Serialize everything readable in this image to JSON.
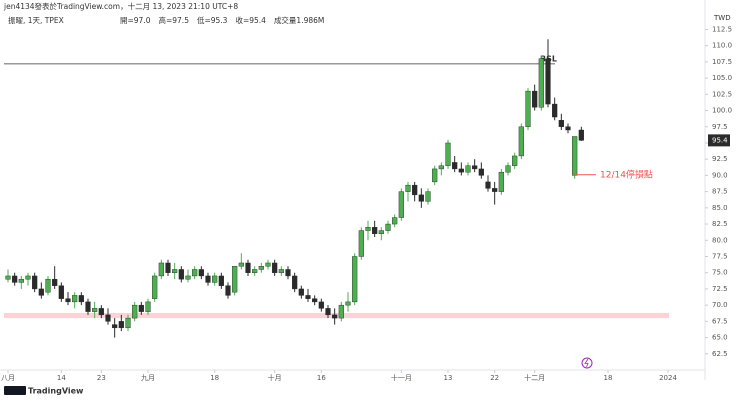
{
  "header": {
    "author_line": "jen4134發表於TradingView.com，十二月 13, 2023 21:10 UTC+8",
    "symbol": "振曜, 1天, TPEX",
    "ohlc": [
      "開=97.0",
      "高=97.5",
      "低=95.3",
      "收=95.4",
      "成交量1.986M"
    ]
  },
  "chart_data": {
    "type": "candlestick",
    "currency": "TWD",
    "up_color": "#4caf50",
    "down_color": "#2b2b2b",
    "open": [
      74,
      74.5,
      73.5,
      74,
      74.5,
      72.5,
      72,
      74,
      73,
      71,
      70.5,
      71.5,
      70.5,
      69,
      69.5,
      68.5,
      67,
      67.5,
      66.5,
      68,
      70,
      69,
      71,
      74.5,
      76.5,
      75,
      75.5,
      74,
      74.5,
      75.5,
      74.5,
      73.5,
      74.5,
      73,
      72,
      76,
      76.5,
      75,
      75.5,
      76,
      76.5,
      75,
      75.5,
      74.5,
      72.5,
      71.5,
      71,
      70.5,
      69.5,
      68.5,
      68,
      70,
      70.5,
      77.5,
      81.5,
      82,
      81,
      81.5,
      82.5,
      83.5,
      87.5,
      88.5,
      87,
      86,
      89,
      91,
      91.5,
      92,
      91,
      90.5,
      91.5,
      91,
      89,
      88,
      87.5,
      90.5,
      91.5,
      93,
      97.5,
      103,
      100.5,
      108,
      101,
      98.5,
      97.5,
      90,
      97
    ],
    "high": [
      75.5,
      75,
      74.5,
      75,
      75,
      73.5,
      74.5,
      76,
      73.5,
      72,
      72,
      72,
      71,
      70.5,
      70,
      69.5,
      68,
      68.5,
      68.5,
      70.5,
      70.5,
      71,
      75,
      77,
      77,
      76.5,
      76,
      75.5,
      76,
      76,
      75,
      75,
      75,
      73.5,
      76,
      78,
      77,
      76,
      76.5,
      77,
      77,
      76,
      76,
      75,
      73,
      72.5,
      71.5,
      71,
      70,
      69.5,
      70.5,
      72,
      78,
      82,
      83,
      83,
      82,
      83,
      84,
      88,
      89,
      89,
      88,
      88,
      91.5,
      92,
      95.5,
      93,
      92,
      92,
      92.5,
      92,
      90,
      89,
      91,
      92,
      93.5,
      98,
      103.5,
      104,
      108.5,
      111,
      102,
      99.5,
      98,
      96,
      97.5
    ],
    "low": [
      73.5,
      73,
      72.5,
      73,
      72,
      71,
      71.5,
      72.5,
      70.5,
      70,
      69.5,
      70,
      68.5,
      68,
      68,
      67,
      65,
      66,
      66,
      67.5,
      68.5,
      68.5,
      70.5,
      74,
      74.5,
      74,
      73.5,
      73.5,
      74,
      74,
      73,
      73,
      72.5,
      71,
      71.5,
      75.5,
      74.5,
      74.5,
      75,
      75.5,
      74.5,
      74.5,
      74,
      72,
      71,
      70.5,
      70,
      69,
      68,
      67,
      67.5,
      69,
      70,
      77,
      80,
      80.5,
      80,
      81,
      82,
      83,
      86,
      86,
      85,
      85.5,
      88.5,
      90,
      91,
      90.5,
      90,
      90,
      90.5,
      89.5,
      87.5,
      85.5,
      87,
      90,
      91,
      92.5,
      97,
      100,
      100,
      100.5,
      98.5,
      97,
      96.5,
      89.5,
      95.3
    ],
    "close": [
      74.5,
      73.5,
      74,
      74.5,
      72.5,
      71.5,
      74,
      73,
      71,
      70.5,
      71.5,
      70.5,
      69,
      69.5,
      68.5,
      67.5,
      66.5,
      66.5,
      68,
      70,
      69,
      70.5,
      74.5,
      76.5,
      75,
      75.5,
      74,
      74.5,
      75.5,
      74.5,
      73.5,
      74.5,
      73,
      71.5,
      76,
      76.5,
      75,
      75.5,
      76,
      76.5,
      75,
      75.5,
      74.5,
      72.5,
      71.5,
      71,
      70.5,
      69.5,
      68.5,
      68,
      70,
      70.5,
      77.5,
      81.5,
      82,
      81,
      81.5,
      82.5,
      83.5,
      87.5,
      88.5,
      87,
      86,
      87.5,
      91,
      91.5,
      95,
      91,
      90.5,
      91.5,
      91,
      90,
      88,
      87.5,
      90.5,
      91.5,
      93,
      97.5,
      103,
      100.5,
      108,
      101,
      99,
      97.5,
      97,
      96,
      95.4
    ],
    "xlim": [
      -0.6,
      104.4
    ],
    "xticks": [
      {
        "value": 0,
        "label": "八月"
      },
      {
        "value": 8,
        "label": "14"
      },
      {
        "value": 14,
        "label": "23"
      },
      {
        "value": 21,
        "label": "九月"
      },
      {
        "value": 31,
        "label": "18"
      },
      {
        "value": 40,
        "label": "十月"
      },
      {
        "value": 47,
        "label": "16"
      },
      {
        "value": 59,
        "label": "十一月"
      },
      {
        "value": 66,
        "label": "13"
      },
      {
        "value": 73,
        "label": "22"
      },
      {
        "value": 79,
        "label": "十二月"
      },
      {
        "value": 90,
        "label": "18"
      },
      {
        "value": 99,
        "label": "2024"
      }
    ],
    "ylim": [
      60,
      115.5
    ],
    "yticks": [
      {
        "value": 62.5,
        "label": "62.5"
      },
      {
        "value": 65,
        "label": "65.0"
      },
      {
        "value": 67.5,
        "label": "67.5"
      },
      {
        "value": 70,
        "label": "70.0"
      },
      {
        "value": 72.5,
        "label": "72.5"
      },
      {
        "value": 75,
        "label": "75.0"
      },
      {
        "value": 77.5,
        "label": "77.5"
      },
      {
        "value": 80,
        "label": "80.0"
      },
      {
        "value": 82.5,
        "label": "82.5"
      },
      {
        "value": 85,
        "label": "85.0"
      },
      {
        "value": 87.5,
        "label": "87.5"
      },
      {
        "value": 90,
        "label": "90.0"
      },
      {
        "value": 92.5,
        "label": "92.5"
      },
      {
        "value": 95,
        "label": "95.0"
      },
      {
        "value": 97.5,
        "label": "97.5"
      },
      {
        "value": 100,
        "label": "100.0"
      },
      {
        "value": 102.5,
        "label": "102.5"
      },
      {
        "value": 105,
        "label": "105.0"
      },
      {
        "value": 107.5,
        "label": "107.5"
      },
      {
        "value": 110,
        "label": "110.0"
      },
      {
        "value": 112.5,
        "label": "112.5"
      }
    ],
    "bsl": {
      "label": "BSL",
      "value": 107.2
    },
    "zone": {
      "from": 68,
      "to": 68.8
    },
    "stop": {
      "label": "12/14停損點",
      "value": 90.1,
      "color": "#ef5350"
    }
  },
  "footer": {
    "brand": "TradingView"
  }
}
